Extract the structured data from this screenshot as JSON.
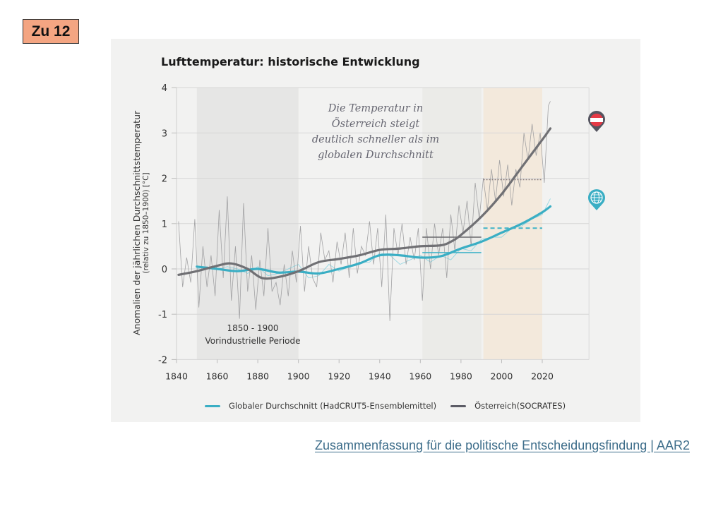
{
  "badge": {
    "label": "Zu 12",
    "color": "#f4a582"
  },
  "footer": {
    "link_text": "Zusammenfassung für die politische Entscheidungsfindung | AAR2",
    "color": "#3d6d8a"
  },
  "chart_data": {
    "type": "line",
    "title": "Lufttemperatur: historische Entwicklung",
    "ylabel": "Anomalien der jährlichen Durchschnittstemperatur",
    "ylabel_sub": "(relativ zu 1850–1900) [°C]",
    "xlabel": "",
    "xlim": [
      1840,
      2043
    ],
    "ylim": [
      -2,
      4
    ],
    "xticks": [
      1840,
      1860,
      1880,
      1900,
      1920,
      1940,
      1960,
      1980,
      2000,
      2020
    ],
    "yticks": [
      -2,
      -1,
      0,
      1,
      2,
      3,
      4
    ],
    "grid": true,
    "legend_position": "bottom",
    "annotation": [
      "Die Temperatur in",
      "Österreich steigt",
      "deutlich schneller als im",
      "globalen Durchschnitt"
    ],
    "periods": [
      {
        "name": "preindustrial",
        "start": 1850,
        "end": 1900,
        "label_line1": "1850 - 1900",
        "label_line2": "Vorindustrielle Periode",
        "color": "#e6e6e5"
      },
      {
        "name": "reference-1961-1990",
        "start": 1961,
        "end": 1990,
        "color": "#ebebe8"
      },
      {
        "name": "reference-1991-2020",
        "start": 1991,
        "end": 2020,
        "color": "#f3e9dc"
      }
    ],
    "period_means": [
      {
        "series": "Österreich",
        "start": 1961,
        "end": 1990,
        "value": 0.7,
        "style": "solid",
        "color": "#6b6b6e"
      },
      {
        "series": "Global",
        "start": 1961,
        "end": 1990,
        "value": 0.36,
        "style": "solid",
        "color": "#3fb3c8"
      },
      {
        "series": "Österreich",
        "start": 1991,
        "end": 2020,
        "value": 1.97,
        "style": "dotted",
        "color": "#8a7f80"
      },
      {
        "series": "Global",
        "start": 1991,
        "end": 2020,
        "value": 0.9,
        "style": "dashed",
        "color": "#3fb3c8"
      }
    ],
    "series": [
      {
        "name": "Globaler Durchschnitt (HadCRUT5-Ensemblemittel)",
        "kind": "smoothed",
        "color": "#3aaec4",
        "x": [
          1850,
          1860,
          1870,
          1880,
          1890,
          1900,
          1910,
          1920,
          1930,
          1940,
          1950,
          1960,
          1970,
          1980,
          1990,
          2000,
          2010,
          2020,
          2024
        ],
        "y": [
          0.05,
          0.0,
          -0.05,
          0.0,
          -0.08,
          -0.06,
          -0.1,
          0.0,
          0.12,
          0.3,
          0.3,
          0.25,
          0.28,
          0.45,
          0.6,
          0.8,
          1.0,
          1.25,
          1.38
        ]
      },
      {
        "name": "Österreich(SOCRATES)",
        "kind": "smoothed",
        "color": "#707074",
        "x": [
          1841,
          1850,
          1860,
          1867,
          1875,
          1882,
          1890,
          1900,
          1910,
          1920,
          1930,
          1940,
          1950,
          1960,
          1970,
          1975,
          1980,
          1990,
          2000,
          2010,
          2020,
          2024
        ],
        "y": [
          -0.13,
          -0.05,
          0.07,
          0.12,
          0.0,
          -0.2,
          -0.18,
          -0.05,
          0.15,
          0.22,
          0.3,
          0.42,
          0.45,
          0.5,
          0.52,
          0.6,
          0.75,
          1.15,
          1.65,
          2.25,
          2.85,
          3.1
        ]
      },
      {
        "name": "Global annual",
        "kind": "annual",
        "color": "#7fd0df",
        "x": [
          1850,
          1855,
          1860,
          1865,
          1870,
          1875,
          1880,
          1885,
          1890,
          1895,
          1900,
          1905,
          1910,
          1915,
          1920,
          1925,
          1930,
          1935,
          1940,
          1945,
          1950,
          1955,
          1960,
          1965,
          1970,
          1975,
          1980,
          1985,
          1990,
          1995,
          2000,
          2005,
          2010,
          2015,
          2020,
          2024
        ],
        "y": [
          0.0,
          0.05,
          -0.02,
          0.05,
          0.0,
          -0.1,
          0.05,
          -0.15,
          -0.1,
          0.0,
          0.1,
          -0.2,
          -0.15,
          0.1,
          -0.05,
          0.05,
          0.15,
          0.15,
          0.35,
          0.3,
          0.1,
          0.2,
          0.3,
          0.15,
          0.3,
          0.2,
          0.45,
          0.4,
          0.65,
          0.7,
          0.7,
          0.9,
          0.95,
          1.1,
          1.2,
          1.55
        ]
      },
      {
        "name": "Österreich annual",
        "kind": "annual",
        "color": "#9a9a9c",
        "x": [
          1841,
          1843,
          1845,
          1847,
          1849,
          1851,
          1853,
          1855,
          1857,
          1859,
          1861,
          1863,
          1865,
          1867,
          1869,
          1871,
          1873,
          1875,
          1877,
          1879,
          1881,
          1883,
          1885,
          1887,
          1889,
          1891,
          1893,
          1895,
          1897,
          1899,
          1901,
          1903,
          1905,
          1907,
          1909,
          1911,
          1913,
          1915,
          1917,
          1919,
          1921,
          1923,
          1925,
          1927,
          1929,
          1931,
          1933,
          1935,
          1937,
          1939,
          1941,
          1943,
          1945,
          1947,
          1949,
          1951,
          1953,
          1955,
          1957,
          1959,
          1961,
          1963,
          1965,
          1967,
          1969,
          1971,
          1973,
          1975,
          1977,
          1979,
          1981,
          1983,
          1985,
          1987,
          1989,
          1991,
          1993,
          1995,
          1997,
          1999,
          2001,
          2003,
          2005,
          2007,
          2009,
          2011,
          2013,
          2015,
          2017,
          2019,
          2021,
          2023,
          2024
        ],
        "y": [
          1.05,
          -0.4,
          0.25,
          -0.3,
          1.1,
          -0.85,
          0.5,
          -0.4,
          0.3,
          -0.6,
          1.3,
          -0.2,
          1.6,
          -0.7,
          0.5,
          -1.1,
          1.45,
          -0.5,
          0.3,
          -0.9,
          0.2,
          -0.6,
          0.9,
          -0.5,
          -0.3,
          -0.8,
          0.1,
          -0.6,
          0.4,
          -0.3,
          0.95,
          -0.5,
          0.5,
          -0.2,
          -0.4,
          0.8,
          0.2,
          0.4,
          -0.3,
          0.6,
          0.1,
          0.8,
          -0.2,
          0.9,
          -0.1,
          0.5,
          0.3,
          1.05,
          0.1,
          0.9,
          -0.4,
          1.2,
          -1.15,
          0.9,
          0.3,
          1.0,
          0.1,
          0.7,
          0.2,
          0.9,
          -0.7,
          0.9,
          0.0,
          1.0,
          0.3,
          0.9,
          -0.2,
          1.2,
          0.4,
          1.4,
          0.8,
          1.5,
          0.5,
          1.9,
          1.1,
          2.0,
          1.3,
          2.2,
          1.5,
          2.4,
          1.6,
          2.3,
          1.4,
          2.2,
          1.8,
          3.0,
          2.4,
          3.2,
          2.5,
          3.0,
          1.9,
          3.6,
          3.7
        ]
      }
    ],
    "markers": [
      {
        "name": "austria-flag-marker",
        "series": "Österreich(SOCRATES)",
        "colors": [
          "#e63a46",
          "#ffffff",
          "#555560"
        ]
      },
      {
        "name": "globe-marker",
        "series": "Globaler Durchschnitt (HadCRUT5-Ensemblemittel)",
        "colors": [
          "#3aaec4",
          "#ffffff"
        ]
      }
    ]
  }
}
